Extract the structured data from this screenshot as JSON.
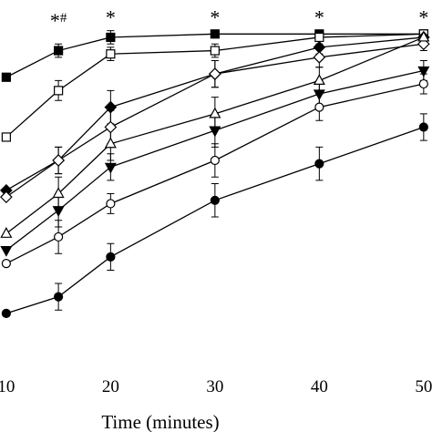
{
  "chart_data": {
    "type": "line",
    "x_label": "Time (minutes)",
    "x": [
      10,
      15,
      20,
      30,
      40,
      50
    ],
    "xlim": [
      9.4,
      50.8
    ],
    "xticks": [
      10,
      20,
      30,
      40,
      50
    ],
    "ylim": [
      0,
      100
    ],
    "series": [
      {
        "marker": "square",
        "filled": true,
        "color": "#000000",
        "values": [
          85,
          93,
          97,
          98,
          98,
          98
        ],
        "errors": [
          null,
          2,
          2,
          1,
          1,
          1
        ]
      },
      {
        "marker": "square",
        "filled": false,
        "color": "#000000",
        "values": [
          67,
          81,
          92,
          93,
          97,
          98
        ],
        "errors": [
          null,
          3,
          2,
          2,
          2,
          1
        ]
      },
      {
        "marker": "diamond",
        "filled": true,
        "color": "#000000",
        "values": [
          51,
          60,
          76,
          86,
          94,
          97
        ],
        "errors": [
          null,
          4,
          5,
          4,
          2,
          1
        ]
      },
      {
        "marker": "diamond",
        "filled": false,
        "color": "#000000",
        "values": [
          49,
          60,
          70,
          86,
          91,
          95
        ],
        "errors": [
          null,
          4,
          5,
          4,
          3,
          2
        ]
      },
      {
        "marker": "triangle",
        "filled": false,
        "color": "#000000",
        "values": [
          38,
          50,
          65,
          74,
          84,
          97
        ],
        "errors": [
          null,
          5,
          5,
          5,
          4,
          1
        ]
      },
      {
        "marker": "triangle-down",
        "filled": true,
        "color": "#000000",
        "values": [
          33,
          45,
          58,
          69,
          80,
          87
        ],
        "errors": [
          null,
          5,
          4,
          5,
          4,
          3
        ]
      },
      {
        "marker": "circle",
        "filled": false,
        "color": "#000000",
        "values": [
          29,
          37,
          47,
          60,
          76,
          83
        ],
        "errors": [
          null,
          5,
          3,
          5,
          4,
          3
        ]
      },
      {
        "marker": "circle",
        "filled": true,
        "color": "#000000",
        "values": [
          14,
          19,
          31,
          48,
          59,
          70
        ],
        "errors": [
          null,
          4,
          4,
          5,
          5,
          4
        ]
      }
    ],
    "annotations": [
      {
        "x": 15,
        "y": 100,
        "text": "*",
        "sup": "#"
      },
      {
        "x": 20,
        "y": 101,
        "text": "*"
      },
      {
        "x": 30,
        "y": 101,
        "text": "*"
      },
      {
        "x": 40,
        "y": 101,
        "text": "*"
      },
      {
        "x": 50,
        "y": 101,
        "text": "*"
      }
    ]
  }
}
